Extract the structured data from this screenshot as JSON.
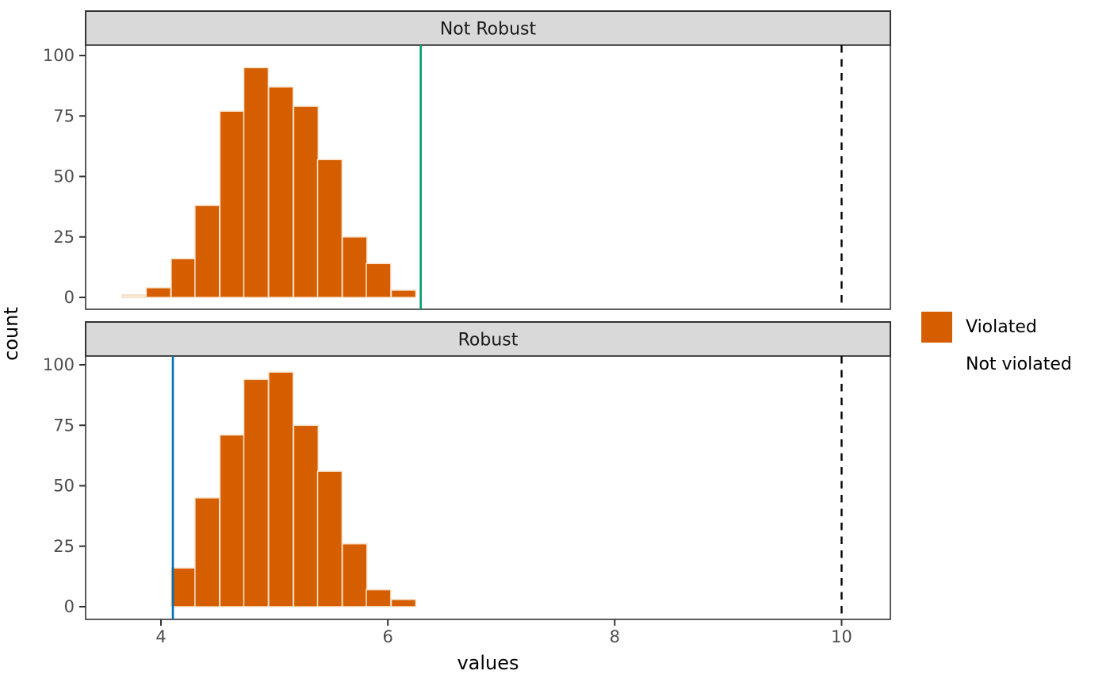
{
  "figure": {
    "background": "#FFFFFF"
  },
  "chart_data": {
    "type": "histogram",
    "title": "",
    "xlabel": "values",
    "ylabel": "count",
    "x_ticks": [
      "4",
      "6",
      "8",
      "10"
    ],
    "x_tick_values": [
      4,
      6,
      8,
      10
    ],
    "y_ticks": [
      "100",
      "75",
      "50",
      "25",
      "0"
    ],
    "y_tick_values": [
      100,
      75,
      50,
      25,
      0
    ],
    "x_domain": [
      3.336,
      10.43
    ],
    "y_domain": [
      0,
      100
    ],
    "binwidth": 0.216,
    "grid": "off",
    "legend_position": "right",
    "colors": {
      "violated_fill": "#D55E00",
      "violated_edge": "#F8E3CD",
      "not_violated_fill": "#FDF2E7",
      "not_violated_edge": "#F5D9BA",
      "not_robust_vline": "#009E73",
      "robust_vline": "#0072B2",
      "dashed_vline": "#000000",
      "strip_bg": "#D9D9D9",
      "border": "#333333",
      "tick_text": "#4D4D4D",
      "strip_text": "#1A1A1A"
    },
    "facets": [
      {
        "label": "Not Robust",
        "bins": [
          {
            "x": 3.66,
            "count": 1,
            "category": "Not violated"
          },
          {
            "x": 3.87,
            "count": 4,
            "category": "Violated"
          },
          {
            "x": 4.09,
            "count": 16,
            "category": "Violated"
          },
          {
            "x": 4.3,
            "count": 38,
            "category": "Violated"
          },
          {
            "x": 4.52,
            "count": 77,
            "category": "Violated"
          },
          {
            "x": 4.73,
            "count": 95,
            "category": "Violated"
          },
          {
            "x": 4.95,
            "count": 87,
            "category": "Violated"
          },
          {
            "x": 5.17,
            "count": 79,
            "category": "Violated"
          },
          {
            "x": 5.38,
            "count": 57,
            "category": "Violated"
          },
          {
            "x": 5.6,
            "count": 25,
            "category": "Violated"
          },
          {
            "x": 5.81,
            "count": 14,
            "category": "Violated"
          },
          {
            "x": 6.03,
            "count": 3,
            "category": "Violated"
          }
        ],
        "solid_vline": {
          "x": 6.29,
          "color_key": "not_robust_vline"
        },
        "dashed_vline": {
          "x": 10.0,
          "color_key": "dashed_vline"
        }
      },
      {
        "label": "Robust",
        "bins": [
          {
            "x": 4.09,
            "count": 16,
            "category": "Violated"
          },
          {
            "x": 4.3,
            "count": 45,
            "category": "Violated"
          },
          {
            "x": 4.52,
            "count": 71,
            "category": "Violated"
          },
          {
            "x": 4.73,
            "count": 94,
            "category": "Violated"
          },
          {
            "x": 4.95,
            "count": 97,
            "category": "Violated"
          },
          {
            "x": 5.17,
            "count": 75,
            "category": "Violated"
          },
          {
            "x": 5.38,
            "count": 56,
            "category": "Violated"
          },
          {
            "x": 5.6,
            "count": 26,
            "category": "Violated"
          },
          {
            "x": 5.81,
            "count": 7,
            "category": "Violated"
          },
          {
            "x": 6.03,
            "count": 3,
            "category": "Violated"
          }
        ],
        "solid_vline": {
          "x": 4.105,
          "color_key": "robust_vline"
        },
        "dashed_vline": {
          "x": 10.0,
          "color_key": "dashed_vline"
        }
      }
    ],
    "legend": {
      "items": [
        {
          "label": "Violated",
          "swatch": "#D55E00"
        },
        {
          "label": "Not violated",
          "swatch": "#FFFFFF"
        }
      ]
    }
  }
}
